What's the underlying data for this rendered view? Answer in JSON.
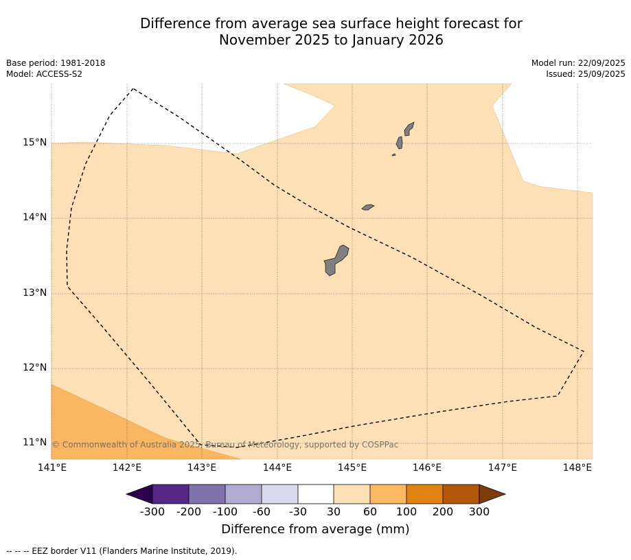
{
  "header": {
    "title_line1": "Difference from average sea surface height forecast for",
    "title_line2": "November 2025 to January 2026",
    "base_period": "Base period: 1981-2018",
    "model": "Model: ACCESS-S2",
    "model_run": "Model run: 22/09/2025",
    "issued": "Issued: 25/09/2025"
  },
  "map": {
    "credit": "© Commonwealth of Australia 2025, Bureau of Meteorology, supported by COSPPac",
    "lat_labels": [
      "15°N",
      "14°N",
      "13°N",
      "12°N",
      "11°N"
    ],
    "lon_labels": [
      "141°E",
      "142°E",
      "143°E",
      "144°E",
      "145°E",
      "146°E",
      "147°E",
      "148°E"
    ],
    "colors": {
      "band_30_60": "#fde0b6",
      "band_60_100": "#fbb661",
      "land": "#808080",
      "nodata": "#ffffff"
    }
  },
  "colorbar": {
    "title": "Difference from average (mm)",
    "tick_labels": [
      "-300",
      "-200",
      "-100",
      "-60",
      "-30",
      "30",
      "60",
      "100",
      "200",
      "300"
    ],
    "colors": [
      "#2d004b",
      "#542788",
      "#8073ac",
      "#b2abd2",
      "#d8daeb",
      "#ffffff",
      "#fee0b6",
      "#fdb863",
      "#e08214",
      "#b35806",
      "#7f3b08"
    ]
  },
  "legend": {
    "eez_note": "--  --  -- EEZ border V11 (Flanders Marine Institute, 2019)."
  }
}
